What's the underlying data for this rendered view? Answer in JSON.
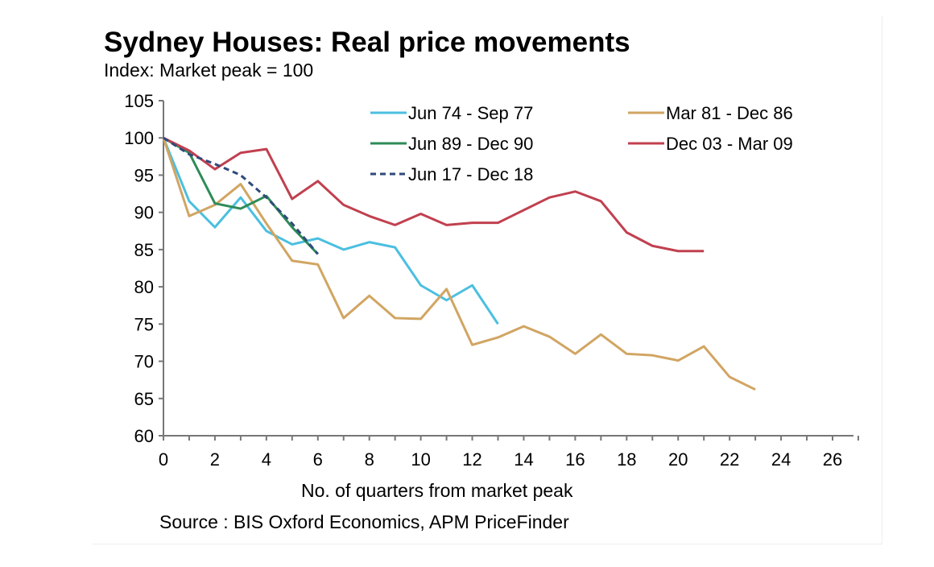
{
  "chart_data": {
    "type": "line",
    "title": "Sydney Houses: Real price movements",
    "subtitle": "Index: Market peak = 100",
    "xlabel": "No. of quarters from market peak",
    "source": "Source : BIS Oxford Economics, APM PriceFinder",
    "xlim": [
      0,
      26
    ],
    "ylim": [
      60,
      105
    ],
    "xticks": [
      0,
      2,
      4,
      6,
      8,
      10,
      12,
      14,
      16,
      18,
      20,
      22,
      24,
      26
    ],
    "yticks": [
      60,
      65,
      70,
      75,
      80,
      85,
      90,
      95,
      100,
      105
    ],
    "grid": false,
    "legend_position": "top-right",
    "series": [
      {
        "name": "Jun 74 - Sep 77",
        "color": "#4bbfe0",
        "dashed": false,
        "values": [
          100,
          91.5,
          88,
          92,
          87.5,
          85.7,
          86.5,
          85,
          86,
          85.3,
          80.2,
          78.2,
          80.2,
          75
        ]
      },
      {
        "name": "Mar 81 - Dec 86",
        "color": "#d1a562",
        "dashed": false,
        "values": [
          100,
          89.5,
          91,
          93.8,
          88.5,
          83.5,
          83,
          75.8,
          78.8,
          75.8,
          75.7,
          79.7,
          72.2,
          73.2,
          74.7,
          73.3,
          71,
          73.6,
          71,
          70.8,
          70.1,
          72,
          67.9,
          66.2
        ]
      },
      {
        "name": "Jun 89 - Dec 90",
        "color": "#2e8b57",
        "dashed": false,
        "values": [
          100,
          98,
          91.2,
          90.5,
          92.2,
          88,
          84.4
        ]
      },
      {
        "name": "Dec 03 - Mar 09",
        "color": "#c1404f",
        "dashed": false,
        "values": [
          100,
          98.3,
          95.8,
          98,
          98.5,
          91.8,
          94.2,
          91,
          89.5,
          88.3,
          89.8,
          88.3,
          88.6,
          88.6,
          90.3,
          92,
          92.8,
          91.5,
          87.3,
          85.5,
          84.8,
          84.8
        ]
      },
      {
        "name": "Jun 17 - Dec 18",
        "color": "#2f4a7a",
        "dashed": true,
        "values": [
          100,
          97.8,
          96.5,
          95,
          92,
          88.5,
          84.4
        ]
      }
    ]
  }
}
